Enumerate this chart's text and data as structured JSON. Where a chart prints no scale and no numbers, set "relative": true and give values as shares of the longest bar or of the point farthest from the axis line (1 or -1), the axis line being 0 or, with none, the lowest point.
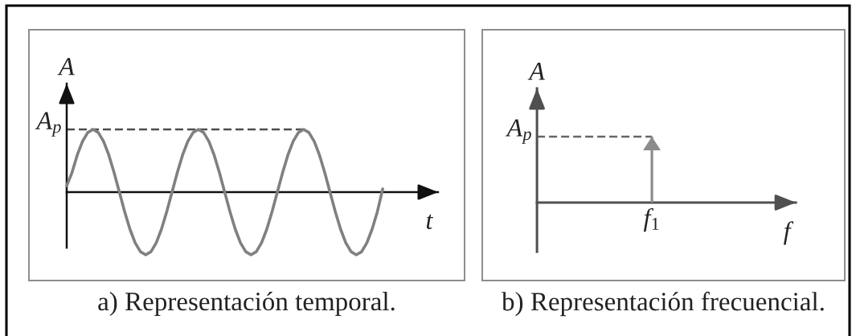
{
  "chart_data": [
    {
      "type": "line",
      "title": "a) Representación temporal.",
      "xlabel": "t",
      "ylabel": "A",
      "relative": true,
      "categories": [
        null,
        null,
        null,
        null,
        null,
        null,
        null,
        null,
        null,
        null,
        null,
        null,
        null,
        null,
        null,
        null,
        null,
        null,
        null,
        null,
        null,
        null,
        null,
        null,
        null,
        null,
        null,
        null,
        null,
        null,
        null,
        null,
        null,
        null,
        null,
        null,
        null,
        null,
        null,
        null,
        null,
        null,
        null,
        null,
        null,
        null,
        null,
        null,
        null,
        null,
        null,
        null,
        null,
        null,
        null,
        null,
        null,
        null,
        null,
        null,
        null
      ],
      "series": [
        {
          "color": "#808080",
          "values": [
            0.1,
            0.31,
            0.59,
            0.81,
            0.95,
            1,
            0.95,
            0.81,
            0.59,
            0.31,
            0,
            -0.31,
            -0.59,
            -0.81,
            -0.95,
            -1,
            -0.95,
            -0.81,
            -0.59,
            -0.31,
            0,
            0.31,
            0.59,
            0.81,
            0.95,
            1,
            0.95,
            0.81,
            0.59,
            0.31,
            0,
            -0.31,
            -0.59,
            -0.81,
            -0.95,
            -1,
            -0.95,
            -0.81,
            -0.59,
            -0.31,
            0,
            0.31,
            0.59,
            0.81,
            0.95,
            1,
            0.95,
            0.81,
            0.59,
            0.31,
            0,
            -0.31,
            -0.59,
            -0.81,
            -0.95,
            -1,
            -0.95,
            -0.81,
            -0.59,
            -0.31,
            0.05
          ]
        }
      ],
      "ref_lines": [
        {
          "axis": "y",
          "value": 1,
          "label": "A$_{p}$",
          "line_style": "dashed",
          "color": "#4d4d4d"
        }
      ]
    },
    {
      "type": "bar",
      "title": "b) Representación frecuencial.",
      "xlabel": "f",
      "ylabel": "A",
      "relative": true,
      "categories": [
        "f$_{1}$"
      ],
      "series": [
        {
          "color": "#8c8c8c",
          "values": [
            1
          ]
        }
      ],
      "ref_lines": [
        {
          "axis": "y",
          "value": 1,
          "label": "A$_{p}$",
          "line_style": "dashed",
          "color": "#666666"
        }
      ]
    }
  ]
}
